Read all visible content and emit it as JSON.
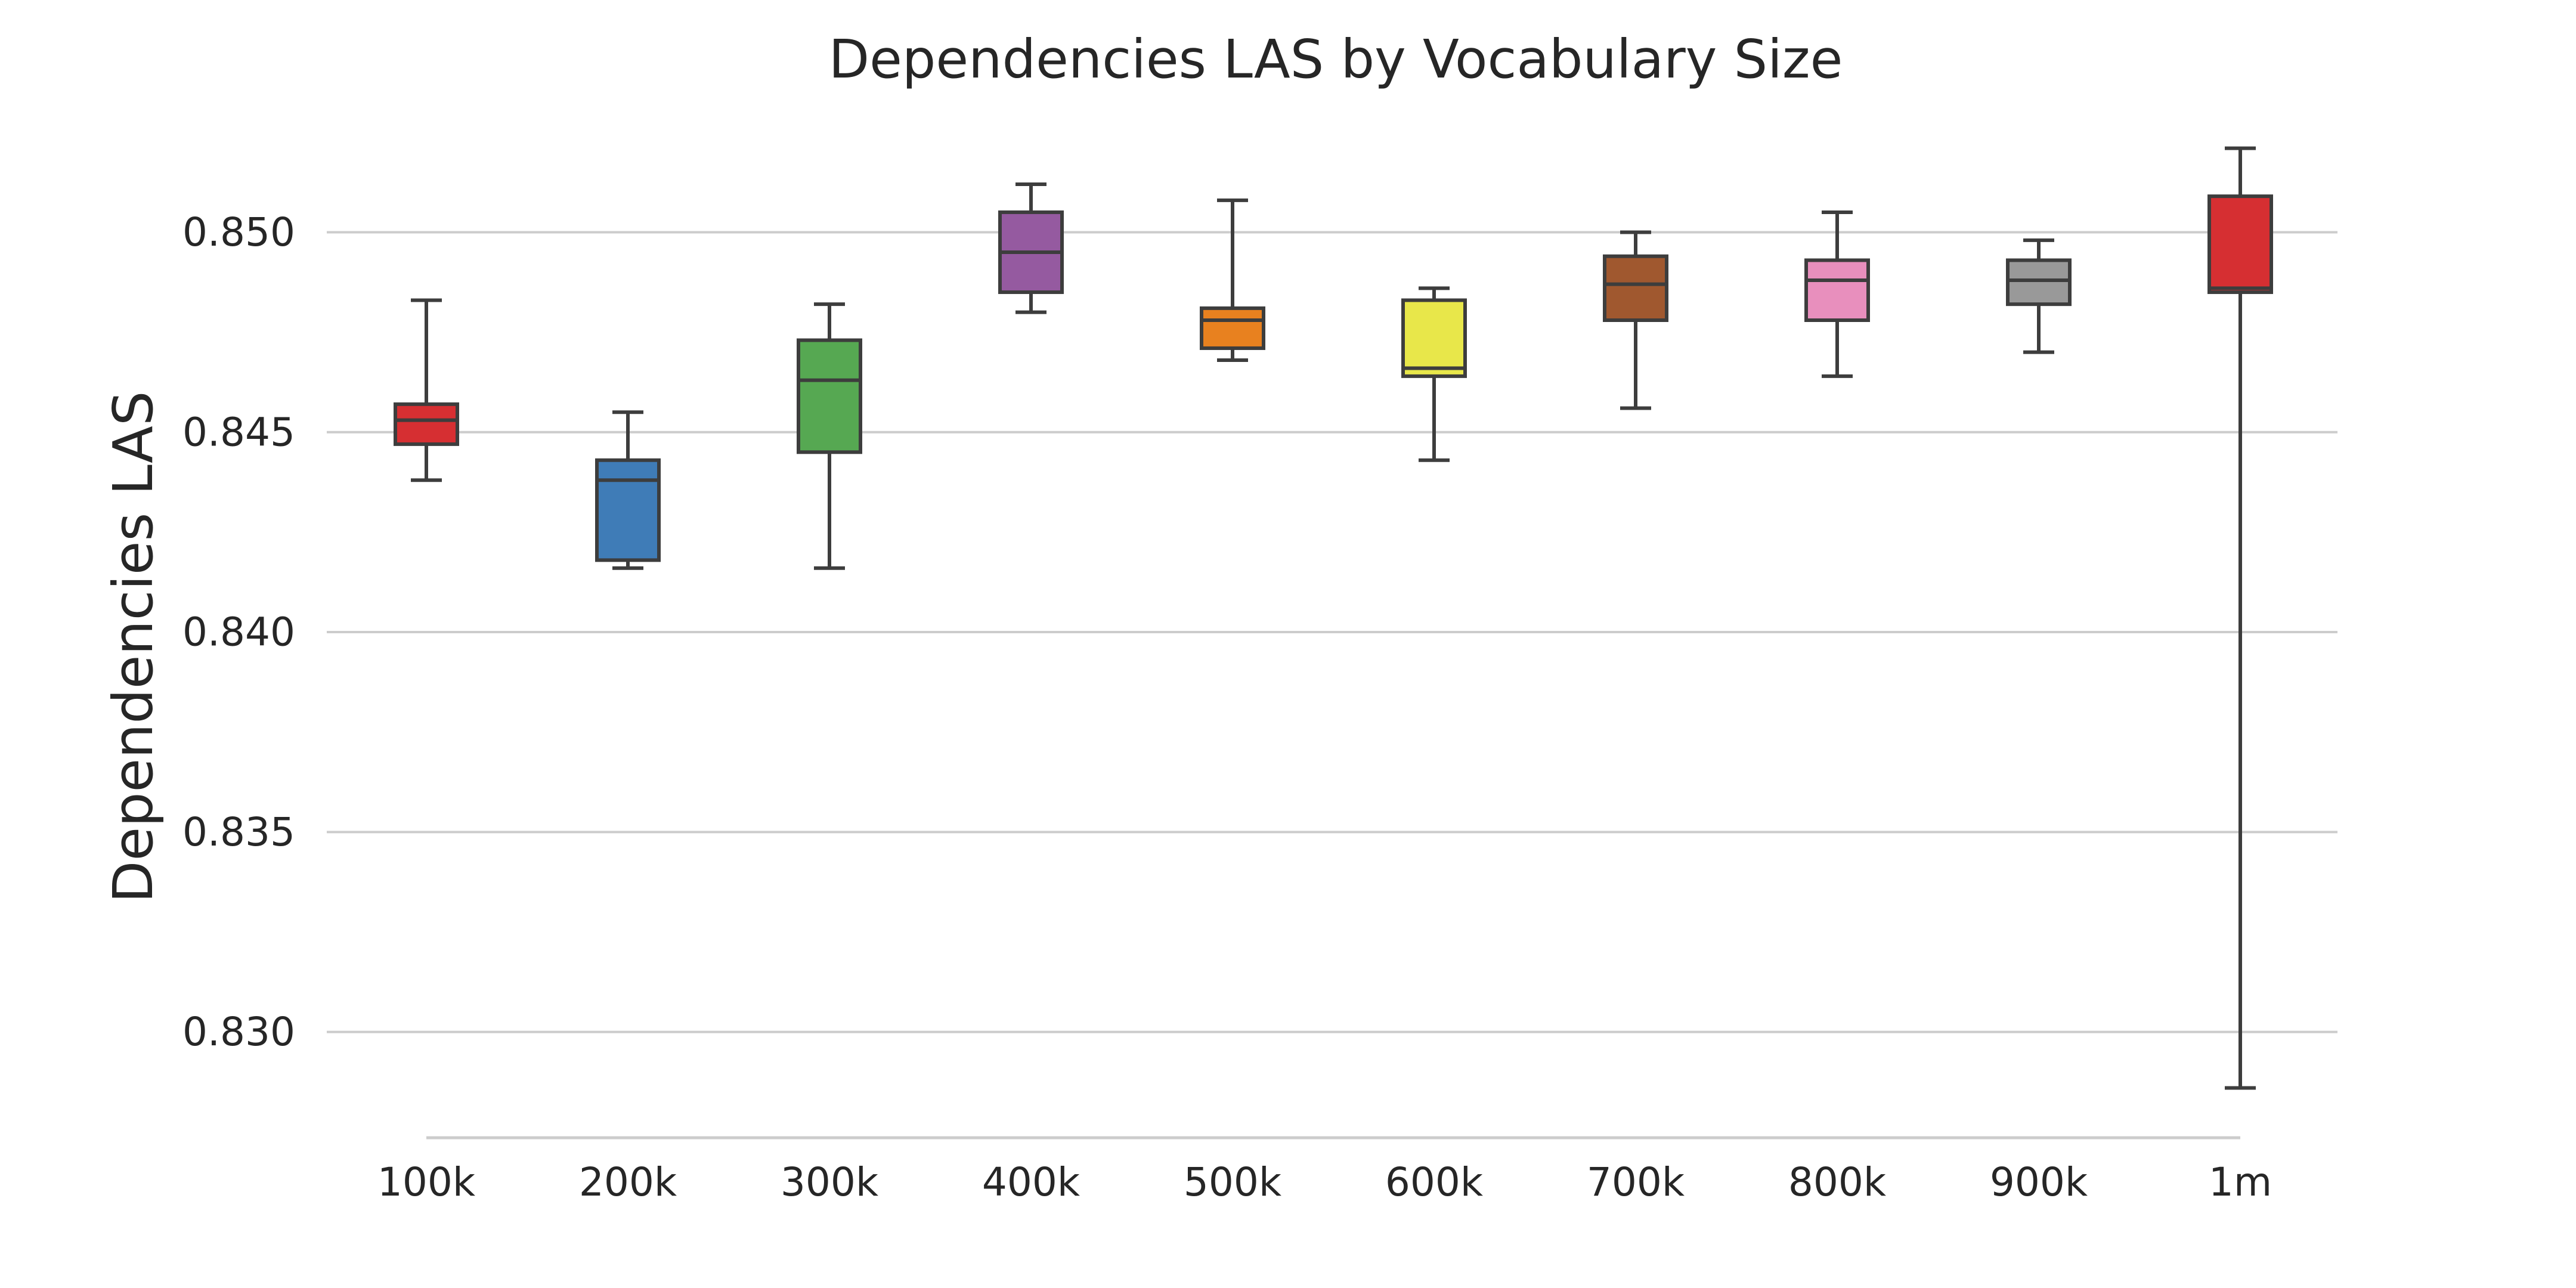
{
  "chart_data": {
    "type": "box",
    "title": "Dependencies LAS by Vocabulary Size",
    "xlabel": "",
    "ylabel": "Dependencies LAS",
    "ylim": [
      0.8274,
      0.8529
    ],
    "yticks": [
      0.83,
      0.835,
      0.84,
      0.845,
      0.85
    ],
    "ytick_labels": [
      "0.830",
      "0.835",
      "0.840",
      "0.845",
      "0.850"
    ],
    "grid": true,
    "categories": [
      "100k",
      "200k",
      "300k",
      "400k",
      "500k",
      "600k",
      "700k",
      "800k",
      "900k",
      "1m"
    ],
    "boxes": [
      {
        "category": "100k",
        "whisker_low": 0.8438,
        "q1": 0.8447,
        "median": 0.8453,
        "q3": 0.8457,
        "whisker_high": 0.8483,
        "color": "#d62f32"
      },
      {
        "category": "200k",
        "whisker_low": 0.8416,
        "q1": 0.8418,
        "median": 0.8438,
        "q3": 0.8443,
        "whisker_high": 0.8455,
        "color": "#3f7cb7"
      },
      {
        "category": "300k",
        "whisker_low": 0.8416,
        "q1": 0.8445,
        "median": 0.8463,
        "q3": 0.8473,
        "whisker_high": 0.8482,
        "color": "#56a852"
      },
      {
        "category": "400k",
        "whisker_low": 0.848,
        "q1": 0.8485,
        "median": 0.8495,
        "q3": 0.8505,
        "whisker_high": 0.8512,
        "color": "#955aa0"
      },
      {
        "category": "500k",
        "whisker_low": 0.8468,
        "q1": 0.8471,
        "median": 0.8478,
        "q3": 0.8481,
        "whisker_high": 0.8508,
        "color": "#e8811f"
      },
      {
        "category": "600k",
        "whisker_low": 0.8443,
        "q1": 0.8464,
        "median": 0.8466,
        "q3": 0.8483,
        "whisker_high": 0.8486,
        "color": "#e8e74a"
      },
      {
        "category": "700k",
        "whisker_low": 0.8456,
        "q1": 0.8478,
        "median": 0.8487,
        "q3": 0.8494,
        "whisker_high": 0.85,
        "color": "#a0582f"
      },
      {
        "category": "800k",
        "whisker_low": 0.8464,
        "q1": 0.8478,
        "median": 0.8488,
        "q3": 0.8493,
        "whisker_high": 0.8505,
        "color": "#e88fbd"
      },
      {
        "category": "900k",
        "whisker_low": 0.847,
        "q1": 0.8482,
        "median": 0.8488,
        "q3": 0.8493,
        "whisker_high": 0.8498,
        "color": "#999999"
      },
      {
        "category": "1m",
        "whisker_low": 0.8286,
        "q1": 0.8485,
        "median": 0.8486,
        "q3": 0.8509,
        "whisker_high": 0.8521,
        "color": "#d62f32"
      }
    ]
  }
}
